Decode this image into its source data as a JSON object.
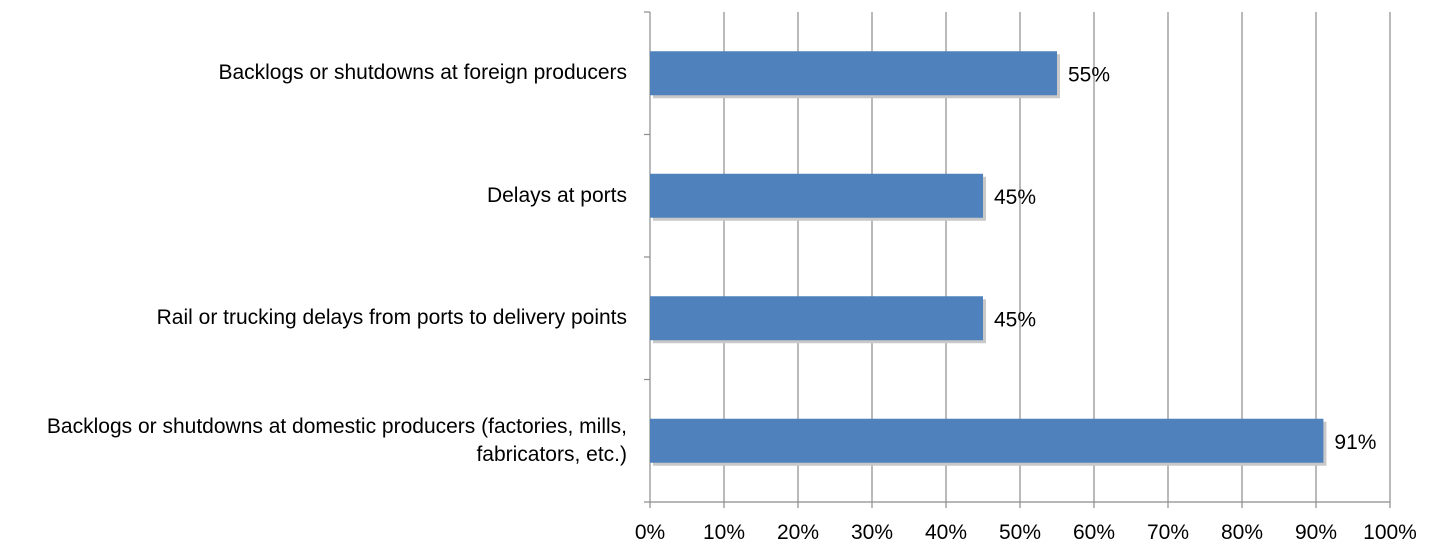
{
  "chart_data": {
    "type": "bar",
    "orientation": "horizontal",
    "categories": [
      "Backlogs or shutdowns at foreign producers",
      "Delays at ports",
      "Rail or trucking delays from ports to delivery points",
      "Backlogs or shutdowns at domestic producers (factories, mills, fabricators, etc.)"
    ],
    "values": [
      55,
      45,
      45,
      91
    ],
    "value_labels": [
      "55%",
      "45%",
      "45%",
      "91%"
    ],
    "x_ticks": [
      "0%",
      "10%",
      "20%",
      "30%",
      "40%",
      "50%",
      "60%",
      "70%",
      "80%",
      "90%",
      "100%"
    ],
    "xlim": [
      0,
      100
    ],
    "grid": "vertical",
    "legend": "none",
    "bar_color": "#4f81bd"
  }
}
